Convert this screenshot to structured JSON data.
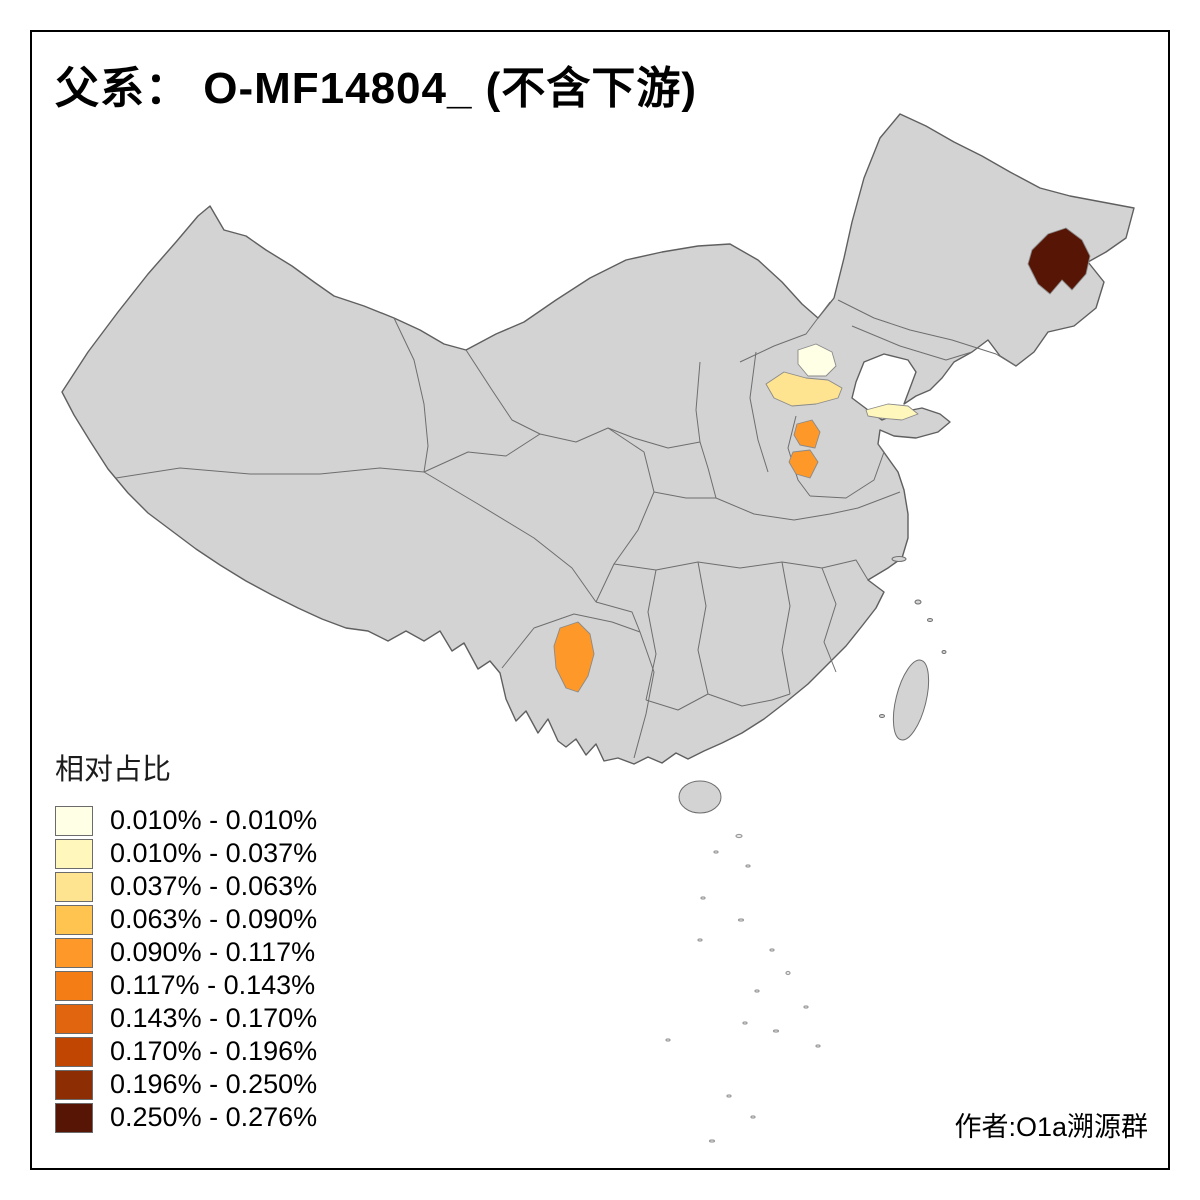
{
  "title": "父系： O-MF14804_ (不含下游)",
  "legend": {
    "title": "相对占比",
    "items": [
      {
        "label": "0.010% - 0.010%",
        "color": "#ffffe5"
      },
      {
        "label": "0.010% - 0.037%",
        "color": "#fff7bc"
      },
      {
        "label": "0.037% - 0.063%",
        "color": "#fee391"
      },
      {
        "label": "0.063% - 0.090%",
        "color": "#fec44f"
      },
      {
        "label": "0.090% - 0.117%",
        "color": "#fe9929"
      },
      {
        "label": "0.117% - 0.143%",
        "color": "#f57d15"
      },
      {
        "label": "0.143% - 0.170%",
        "color": "#e1640e"
      },
      {
        "label": "0.170% - 0.196%",
        "color": "#c04602"
      },
      {
        "label": "0.196% - 0.250%",
        "color": "#8c2d04"
      },
      {
        "label": "0.250% - 0.276%",
        "color": "#571605"
      }
    ]
  },
  "attribution": "作者:O1a溯源群",
  "map": {
    "base_color": "#d3d3d3",
    "sea_color": "#ffffff",
    "highlighted_regions": [
      {
        "name": "northeast-heilongjiang",
        "bin": 9,
        "range": "0.250% - 0.276%"
      },
      {
        "name": "beijing-area",
        "bin": 0,
        "range": "0.010% - 0.010%"
      },
      {
        "name": "hebei-central",
        "bin": 2,
        "range": "0.037% - 0.063%"
      },
      {
        "name": "shandong-peninsula",
        "bin": 1,
        "range": "0.010% - 0.037%"
      },
      {
        "name": "hebei-south",
        "bin": 4,
        "range": "0.090% - 0.117%"
      },
      {
        "name": "shandong-west",
        "bin": 4,
        "range": "0.090% - 0.117%"
      },
      {
        "name": "yunnan-central",
        "bin": 4,
        "range": "0.090% - 0.117%"
      }
    ]
  }
}
